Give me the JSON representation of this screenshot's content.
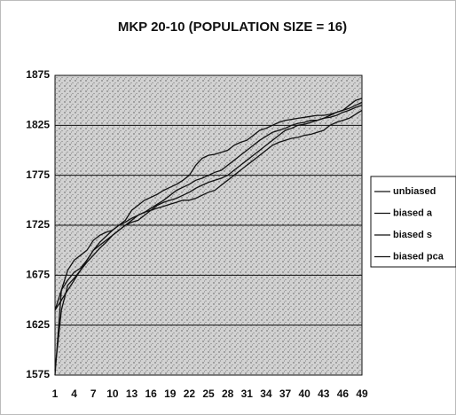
{
  "chart_data": {
    "type": "line",
    "title": "MKP 20-10 (POPULATION SIZE = 16)",
    "categories": [
      1,
      null,
      null,
      4,
      null,
      null,
      7,
      null,
      null,
      10,
      null,
      null,
      13,
      null,
      null,
      16,
      null,
      null,
      19,
      null,
      null,
      22,
      null,
      null,
      25,
      null,
      null,
      28,
      null,
      null,
      31,
      null,
      null,
      34,
      null,
      null,
      37,
      null,
      null,
      40,
      null,
      null,
      43,
      null,
      null,
      46,
      null,
      null,
      49
    ],
    "series": [
      {
        "name": "unbiased",
        "color": "#111111",
        "values": [
          1640,
          1660,
          1680,
          1690,
          1695,
          1700,
          1710,
          1715,
          1718,
          1720,
          1725,
          1730,
          1740,
          1745,
          1750,
          1753,
          1756,
          1760,
          1763,
          1766,
          1770,
          1775,
          1785,
          1792,
          1795,
          1796,
          1798,
          1800,
          1805,
          1808,
          1810,
          1815,
          1820,
          1822,
          1825,
          1828,
          1830,
          1831,
          1832,
          1833,
          1834,
          1835,
          1835,
          1836,
          1838,
          1840,
          1845,
          1850,
          1852
        ]
      },
      {
        "name": "biased a",
        "color": "#111111",
        "values": [
          1575,
          1660,
          1670,
          1678,
          1682,
          1690,
          1700,
          1705,
          1710,
          1715,
          1720,
          1725,
          1730,
          1735,
          1738,
          1742,
          1746,
          1750,
          1755,
          1760,
          1763,
          1766,
          1770,
          1772,
          1775,
          1778,
          1780,
          1785,
          1790,
          1795,
          1800,
          1805,
          1810,
          1814,
          1818,
          1820,
          1822,
          1825,
          1827,
          1828,
          1830,
          1830,
          1832,
          1835,
          1838,
          1840,
          1842,
          1845,
          1848
        ]
      },
      {
        "name": "biased s",
        "color": "#111111",
        "values": [
          1640,
          1650,
          1660,
          1670,
          1680,
          1690,
          1700,
          1708,
          1714,
          1720,
          1725,
          1728,
          1732,
          1735,
          1738,
          1740,
          1742,
          1744,
          1746,
          1748,
          1750,
          1750,
          1752,
          1755,
          1758,
          1760,
          1765,
          1770,
          1775,
          1780,
          1785,
          1790,
          1795,
          1800,
          1805,
          1808,
          1810,
          1812,
          1813,
          1815,
          1816,
          1818,
          1820,
          1825,
          1828,
          1830,
          1832,
          1836,
          1840
        ]
      },
      {
        "name": "biased pca",
        "color": "#111111",
        "values": [
          1580,
          1640,
          1665,
          1672,
          1680,
          1688,
          1695,
          1702,
          1708,
          1715,
          1720,
          1725,
          1728,
          1730,
          1735,
          1740,
          1745,
          1748,
          1750,
          1752,
          1755,
          1758,
          1762,
          1765,
          1768,
          1770,
          1772,
          1775,
          1780,
          1785,
          1790,
          1795,
          1800,
          1805,
          1810,
          1815,
          1820,
          1822,
          1825,
          1826,
          1828,
          1830,
          1832,
          1833,
          1835,
          1838,
          1840,
          1843,
          1845
        ]
      }
    ],
    "ylim": [
      1575,
      1875
    ],
    "yticks": [
      1575,
      1625,
      1675,
      1725,
      1775,
      1825,
      1875
    ],
    "grid": true,
    "legend": "right"
  }
}
